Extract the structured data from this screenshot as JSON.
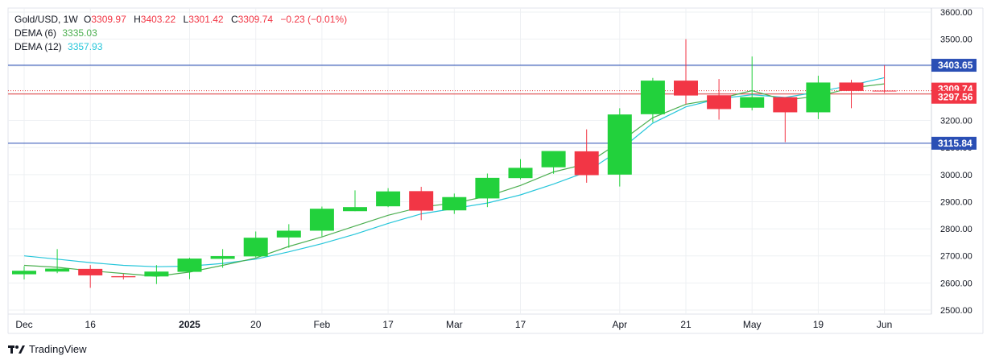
{
  "legend": {
    "symbol": "Gold/USD, 1W",
    "o_label": "O",
    "o_value": "3309.97",
    "h_label": "H",
    "h_value": "3403.22",
    "l_label": "L",
    "l_value": "3301.42",
    "c_label": "C",
    "c_value": "3309.74",
    "change": "−0.23 (−0.01%)",
    "dema6_label": "DEMA (6)",
    "dema6_value": "3335.03",
    "dema12_label": "DEMA (12)",
    "dema12_value": "3357.93"
  },
  "footer": {
    "brand": "TradingView"
  },
  "colors": {
    "up": "#22d13c",
    "down": "#f23645",
    "dema6": "#4caf50",
    "dema12": "#26c6da",
    "hline": "#2a4fb5",
    "redline": "#e23b3b",
    "grid": "#eef0f3",
    "text": "#131722",
    "neutral": "#131722"
  },
  "chart_data": {
    "type": "candlestick",
    "title": "Gold/USD, 1W",
    "ylim": [
      2500,
      3600
    ],
    "y_ticks": [
      "2500.00",
      "2600.00",
      "2700.00",
      "2800.00",
      "2900.00",
      "3000.00",
      "3100.00",
      "3200.00",
      "3300.00",
      "3400.00",
      "3500.00",
      "3600.00"
    ],
    "x_tick_labels": [
      "Dec",
      "16",
      "2025",
      "20",
      "Feb",
      "17",
      "Mar",
      "17",
      "Apr",
      "21",
      "May",
      "19",
      "Jun"
    ],
    "x_tick_bars": [
      0,
      2,
      5,
      7,
      9,
      11,
      13,
      15,
      18,
      20,
      22,
      24,
      26
    ],
    "bold_x_ticks": [
      "2025"
    ],
    "candles": [
      {
        "o": 2632,
        "h": 2662,
        "l": 2613,
        "c": 2645
      },
      {
        "o": 2642,
        "h": 2725,
        "l": 2636,
        "c": 2653
      },
      {
        "o": 2652,
        "h": 2666,
        "l": 2582,
        "c": 2628
      },
      {
        "o": 2625,
        "h": 2634,
        "l": 2613,
        "c": 2621
      },
      {
        "o": 2624,
        "h": 2666,
        "l": 2596,
        "c": 2642
      },
      {
        "o": 2641,
        "h": 2693,
        "l": 2614,
        "c": 2690
      },
      {
        "o": 2689,
        "h": 2725,
        "l": 2656,
        "c": 2699
      },
      {
        "o": 2698,
        "h": 2790,
        "l": 2694,
        "c": 2767
      },
      {
        "o": 2768,
        "h": 2817,
        "l": 2730,
        "c": 2793
      },
      {
        "o": 2793,
        "h": 2882,
        "l": 2772,
        "c": 2874
      },
      {
        "o": 2865,
        "h": 2942,
        "l": 2865,
        "c": 2880
      },
      {
        "o": 2883,
        "h": 2950,
        "l": 2880,
        "c": 2938
      },
      {
        "o": 2939,
        "h": 2955,
        "l": 2832,
        "c": 2867
      },
      {
        "o": 2868,
        "h": 2930,
        "l": 2855,
        "c": 2917
      },
      {
        "o": 2912,
        "h": 3004,
        "l": 2880,
        "c": 2988
      },
      {
        "o": 2987,
        "h": 3057,
        "l": 2982,
        "c": 3025
      },
      {
        "o": 3027,
        "h": 3086,
        "l": 3003,
        "c": 3087
      },
      {
        "o": 3086,
        "h": 3167,
        "l": 2970,
        "c": 2998
      },
      {
        "o": 3000,
        "h": 3245,
        "l": 2956,
        "c": 3222
      },
      {
        "o": 3223,
        "h": 3357,
        "l": 3193,
        "c": 3347
      },
      {
        "o": 3347,
        "h": 3500,
        "l": 3260,
        "c": 3292
      },
      {
        "o": 3293,
        "h": 3353,
        "l": 3203,
        "c": 3242
      },
      {
        "o": 3247,
        "h": 3436,
        "l": 3237,
        "c": 3286
      },
      {
        "o": 3286,
        "h": 3283,
        "l": 3120,
        "c": 3230
      },
      {
        "o": 3230,
        "h": 3365,
        "l": 3205,
        "c": 3340
      },
      {
        "o": 3340,
        "h": 3350,
        "l": 3245,
        "c": 3309
      },
      {
        "o": 3309.97,
        "h": 3403.22,
        "l": 3301.42,
        "c": 3309.74
      }
    ],
    "dema6": [
      2665,
      2658,
      2645,
      2635,
      2625,
      2640,
      2665,
      2692,
      2735,
      2770,
      2810,
      2850,
      2880,
      2895,
      2920,
      2960,
      3010,
      3040,
      3120,
      3210,
      3260,
      3280,
      3310,
      3275,
      3290,
      3320,
      3335.03
    ],
    "dema12": [
      2700,
      2688,
      2675,
      2665,
      2660,
      2662,
      2672,
      2688,
      2715,
      2745,
      2780,
      2820,
      2855,
      2875,
      2895,
      2925,
      2965,
      3010,
      3090,
      3190,
      3250,
      3280,
      3295,
      3285,
      3305,
      3330,
      3357.93
    ],
    "price_lines": [
      {
        "value": 3403.65,
        "label": "3403.65",
        "kind": "hline"
      },
      {
        "value": 3115.84,
        "label": "3115.84",
        "kind": "hline"
      },
      {
        "value": 3309.74,
        "label": "3309.74",
        "kind": "last"
      },
      {
        "value": 3297.56,
        "label": "3297.56",
        "kind": "red"
      }
    ]
  }
}
